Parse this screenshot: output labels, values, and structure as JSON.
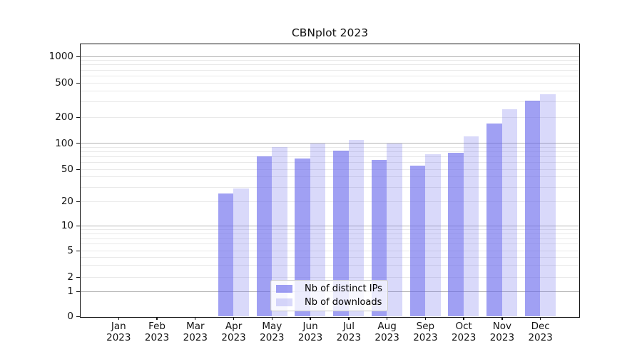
{
  "title": "CBNplot 2023",
  "chart_data": {
    "type": "bar",
    "title": "CBNplot 2023",
    "x_tick_months": [
      "Jan",
      "Feb",
      "Mar",
      "Apr",
      "May",
      "Jun",
      "Jul",
      "Aug",
      "Sep",
      "Oct",
      "Nov",
      "Dec"
    ],
    "x_tick_year": "2023",
    "categories": [
      "Jan 2023",
      "Feb 2023",
      "Mar 2023",
      "Apr 2023",
      "May 2023",
      "Jun 2023",
      "Jul 2023",
      "Aug 2023",
      "Sep 2023",
      "Oct 2023",
      "Nov 2023",
      "Dec 2023"
    ],
    "series": [
      {
        "name": "Nb of distinct IPs",
        "color_hex": "#6666ec",
        "fill_alpha": 0.62,
        "values": [
          0,
          0,
          0,
          25,
          70,
          66,
          82,
          64,
          55,
          77,
          170,
          310
        ]
      },
      {
        "name": "Nb of downloads",
        "color_hex": "#6666ec",
        "fill_alpha": 0.25,
        "values": [
          0,
          0,
          0,
          29,
          90,
          100,
          108,
          100,
          74,
          120,
          245,
          370
        ]
      }
    ],
    "y_axis": {
      "scale": "symlog-like (linear 0-1, log above)",
      "tick_labels": [
        "0",
        "1",
        "2",
        "5",
        "10",
        "20",
        "50",
        "100",
        "200",
        "500",
        "1000"
      ],
      "tick_values": [
        0,
        1,
        2,
        5,
        10,
        20,
        50,
        100,
        200,
        500,
        1000
      ],
      "ylim": [
        0,
        1400
      ],
      "grid": "horizontal, major at powers of 10 + faint log minors"
    },
    "legend": {
      "position": "lower center",
      "entries": [
        "Nb of distinct IPs",
        "Nb of downloads"
      ]
    },
    "colors": {
      "bar_dark_composite": "#a0a0f3",
      "bar_light_composite": "#d9d9fb",
      "grid_major": "#b4b4b4",
      "grid_minor": "#e9e9e9",
      "spine": "#141414"
    }
  }
}
